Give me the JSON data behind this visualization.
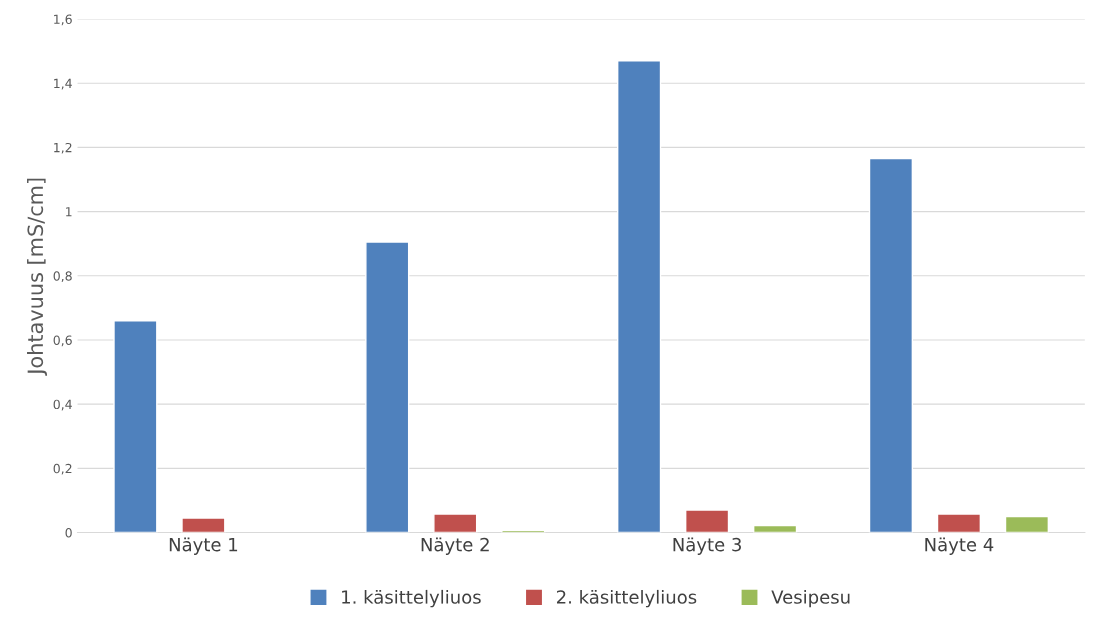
{
  "chart_data": {
    "type": "bar",
    "ylabel": "Johtavuus [mS/cm]",
    "categories": [
      "Näyte 1",
      "Näyte 2",
      "Näyte 3",
      "Näyte 4"
    ],
    "series": [
      {
        "name": "1. käsittelyliuos",
        "color": "#4f81bd",
        "values": [
          0.66,
          0.905,
          1.47,
          1.165
        ]
      },
      {
        "name": "2. käsittelyliuos",
        "color": "#c0504d",
        "values": [
          0.045,
          0.058,
          0.07,
          0.058
        ]
      },
      {
        "name": "Vesipesu",
        "color": "#9bbb59",
        "values": [
          null,
          0.007,
          0.022,
          0.05
        ]
      }
    ],
    "ylim": [
      0,
      1.6
    ],
    "yticks": [
      0,
      {
        "value": 0.2,
        "label": "0,2"
      },
      {
        "value": 0.4,
        "label": "0,4"
      },
      {
        "value": 0.6,
        "label": "0,6"
      },
      {
        "value": 0.8,
        "label": "0,8"
      },
      1,
      {
        "value": 1.2,
        "label": "1,2"
      },
      {
        "value": 1.4,
        "label": "1,4"
      },
      {
        "value": 1.6,
        "label": "1,6"
      }
    ],
    "grid": "y",
    "legend": "bottom"
  }
}
